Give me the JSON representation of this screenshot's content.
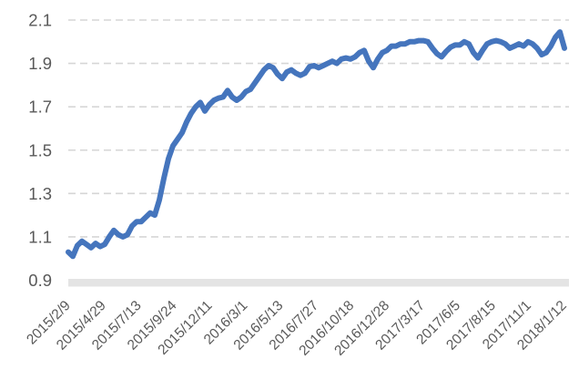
{
  "colors": {
    "line": "#4575BD",
    "gridline": "#D6D6D6",
    "axis_band": "#E4E4E4",
    "label": "#595959",
    "background": "#FFFFFF"
  },
  "chart_data": {
    "type": "line",
    "title": "",
    "xlabel": "",
    "ylabel": "",
    "legend": "none",
    "grid": "horizontal-dashed",
    "y_min": 0.9,
    "y_max": 2.1,
    "y_step": 0.2,
    "y_tick_labels": [
      "0.9",
      "1.1",
      "1.3",
      "1.5",
      "1.7",
      "1.9",
      "2.1"
    ],
    "x_tick_labels": [
      "2015/2/9",
      "2015/4/29",
      "2015/7/13",
      "2015/9/24",
      "2015/12/11",
      "2016/3/1",
      "2016/5/13",
      "2016/7/27",
      "2016/10/18",
      "2016/12/28",
      "2017/3/17",
      "2017/6/5",
      "2017/8/15",
      "2017/11/1",
      "2018/1/12"
    ],
    "series": [
      {
        "name": "net-value",
        "color": "#4575BD",
        "values": [
          1.03,
          1.01,
          1.06,
          1.08,
          1.065,
          1.05,
          1.07,
          1.055,
          1.065,
          1.1,
          1.13,
          1.11,
          1.1,
          1.11,
          1.15,
          1.17,
          1.17,
          1.19,
          1.21,
          1.2,
          1.27,
          1.37,
          1.46,
          1.52,
          1.55,
          1.58,
          1.63,
          1.67,
          1.7,
          1.72,
          1.68,
          1.71,
          1.73,
          1.74,
          1.745,
          1.775,
          1.745,
          1.73,
          1.745,
          1.77,
          1.78,
          1.81,
          1.84,
          1.87,
          1.89,
          1.88,
          1.85,
          1.83,
          1.86,
          1.87,
          1.855,
          1.845,
          1.855,
          1.885,
          1.89,
          1.88,
          1.89,
          1.9,
          1.91,
          1.9,
          1.92,
          1.925,
          1.92,
          1.93,
          1.95,
          1.96,
          1.91,
          1.88,
          1.92,
          1.95,
          1.96,
          1.98,
          1.98,
          1.99,
          1.99,
          2.0,
          2.0,
          2.005,
          2.005,
          2.0,
          1.97,
          1.945,
          1.93,
          1.955,
          1.975,
          1.985,
          1.985,
          2.0,
          1.99,
          1.95,
          1.925,
          1.96,
          1.99,
          2.0,
          2.005,
          2.0,
          1.99,
          1.97,
          1.98,
          1.99,
          1.98,
          2.0,
          1.99,
          1.97,
          1.94,
          1.95,
          1.98,
          2.02,
          2.045,
          1.97
        ]
      }
    ]
  }
}
